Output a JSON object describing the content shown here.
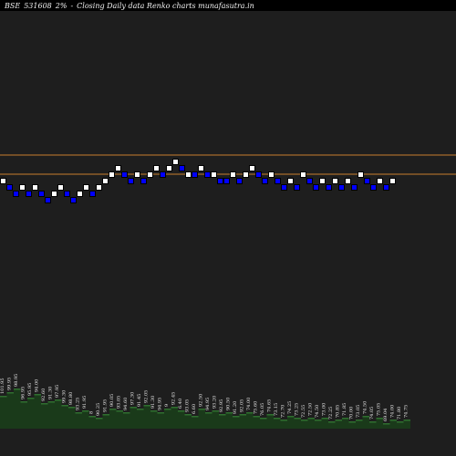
{
  "header": {
    "exchange": "BSE",
    "symbol": "531608",
    "box_size": "2%",
    "separator": "-",
    "description": "Closing Daily data Renko charts munafasutra.in"
  },
  "chart_data": {
    "type": "renko",
    "title": "BSE 531608 2%- Closing Daily data Renko charts munafasutra.in",
    "colors": {
      "background": "#000000",
      "plot_background": "#1e1e1e",
      "up_brick": "#ffffff",
      "down_brick": "#0000ff",
      "reference_line": "#c87d2d",
      "volume_bar": "#1a3a1a",
      "volume_top": "#2f6f2f",
      "volume_label": "#e6e6e6"
    },
    "reference_levels": [
      1,
      6
    ],
    "bricks": [
      {
        "dir": "up",
        "level": 0
      },
      {
        "dir": "down",
        "level": -1
      },
      {
        "dir": "down",
        "level": -2
      },
      {
        "dir": "up",
        "level": -1
      },
      {
        "dir": "down",
        "level": -2
      },
      {
        "dir": "up",
        "level": -1
      },
      {
        "dir": "down",
        "level": -2
      },
      {
        "dir": "down",
        "level": -3
      },
      {
        "dir": "up",
        "level": -2
      },
      {
        "dir": "up",
        "level": -1
      },
      {
        "dir": "down",
        "level": -2
      },
      {
        "dir": "down",
        "level": -3
      },
      {
        "dir": "up",
        "level": -2
      },
      {
        "dir": "up",
        "level": -1
      },
      {
        "dir": "down",
        "level": -2
      },
      {
        "dir": "up",
        "level": -1
      },
      {
        "dir": "up",
        "level": 0
      },
      {
        "dir": "up",
        "level": 1
      },
      {
        "dir": "up",
        "level": 2
      },
      {
        "dir": "down",
        "level": 1
      },
      {
        "dir": "down",
        "level": 0
      },
      {
        "dir": "up",
        "level": 1
      },
      {
        "dir": "down",
        "level": 0
      },
      {
        "dir": "up",
        "level": 1
      },
      {
        "dir": "up",
        "level": 2
      },
      {
        "dir": "down",
        "level": 1
      },
      {
        "dir": "up",
        "level": 2
      },
      {
        "dir": "up",
        "level": 3
      },
      {
        "dir": "down",
        "level": 2
      },
      {
        "dir": "up",
        "level": 1
      },
      {
        "dir": "down",
        "level": 1
      },
      {
        "dir": "up",
        "level": 2
      },
      {
        "dir": "down",
        "level": 1
      },
      {
        "dir": "up",
        "level": 1
      },
      {
        "dir": "down",
        "level": 0
      },
      {
        "dir": "down",
        "level": 0
      },
      {
        "dir": "up",
        "level": 1
      },
      {
        "dir": "down",
        "level": 0
      },
      {
        "dir": "up",
        "level": 1
      },
      {
        "dir": "up",
        "level": 2
      },
      {
        "dir": "down",
        "level": 1
      },
      {
        "dir": "down",
        "level": 0
      },
      {
        "dir": "up",
        "level": 1
      },
      {
        "dir": "down",
        "level": 0
      },
      {
        "dir": "down",
        "level": -1
      },
      {
        "dir": "up",
        "level": 0
      },
      {
        "dir": "down",
        "level": -1
      },
      {
        "dir": "up",
        "level": 1
      },
      {
        "dir": "down",
        "level": 0
      },
      {
        "dir": "down",
        "level": -1
      },
      {
        "dir": "up",
        "level": 0
      },
      {
        "dir": "down",
        "level": -1
      },
      {
        "dir": "up",
        "level": 0
      },
      {
        "dir": "down",
        "level": -1
      },
      {
        "dir": "up",
        "level": 0
      },
      {
        "dir": "down",
        "level": -1
      },
      {
        "dir": "up",
        "level": 1
      },
      {
        "dir": "down",
        "level": 0
      },
      {
        "dir": "down",
        "level": -1
      },
      {
        "dir": "up",
        "level": 0
      },
      {
        "dir": "down",
        "level": -1
      },
      {
        "dir": "up",
        "level": 0
      }
    ],
    "volume_labels": [
      "101.95",
      "99.95",
      "98.95",
      "96.95",
      "95.95",
      "94.00",
      "92.60",
      "91.30",
      "97.95",
      "99.30",
      "98.80",
      "93.25",
      "91.95",
      "8",
      "90.25",
      "91.95",
      "90.05",
      "93.05",
      "94.60",
      "97.30",
      "91.45",
      "92.05",
      "91.30",
      "94.95",
      "9",
      "92.45",
      "6.40",
      "93.05",
      "6.60",
      "92.50",
      "94.95",
      "93.20",
      "92.95",
      "90.50",
      "91.20",
      "92.05",
      "74.00",
      "75.60",
      "76.05",
      "74.65",
      "73.15",
      "72.70",
      "74.25",
      "73.25",
      "72.55",
      "72.50",
      "74.50",
      "73.00",
      "72.25",
      "70.85",
      "71.85",
      "70.00",
      "73.05",
      "74.50",
      "74.05",
      "75.05",
      "69.04",
      "74.00",
      "71.80",
      "74.75"
    ],
    "volume_values": [
      36,
      40,
      44,
      30,
      34,
      38,
      28,
      30,
      32,
      26,
      24,
      18,
      20,
      14,
      12,
      16,
      22,
      20,
      18,
      24,
      22,
      26,
      20,
      18,
      22,
      24,
      20,
      16,
      14,
      22,
      18,
      20,
      16,
      18,
      14,
      16,
      18,
      14,
      12,
      16,
      12,
      10,
      14,
      12,
      10,
      12,
      10,
      12,
      8,
      10,
      12,
      8,
      10,
      14,
      8,
      12,
      6,
      10,
      8,
      10
    ]
  }
}
